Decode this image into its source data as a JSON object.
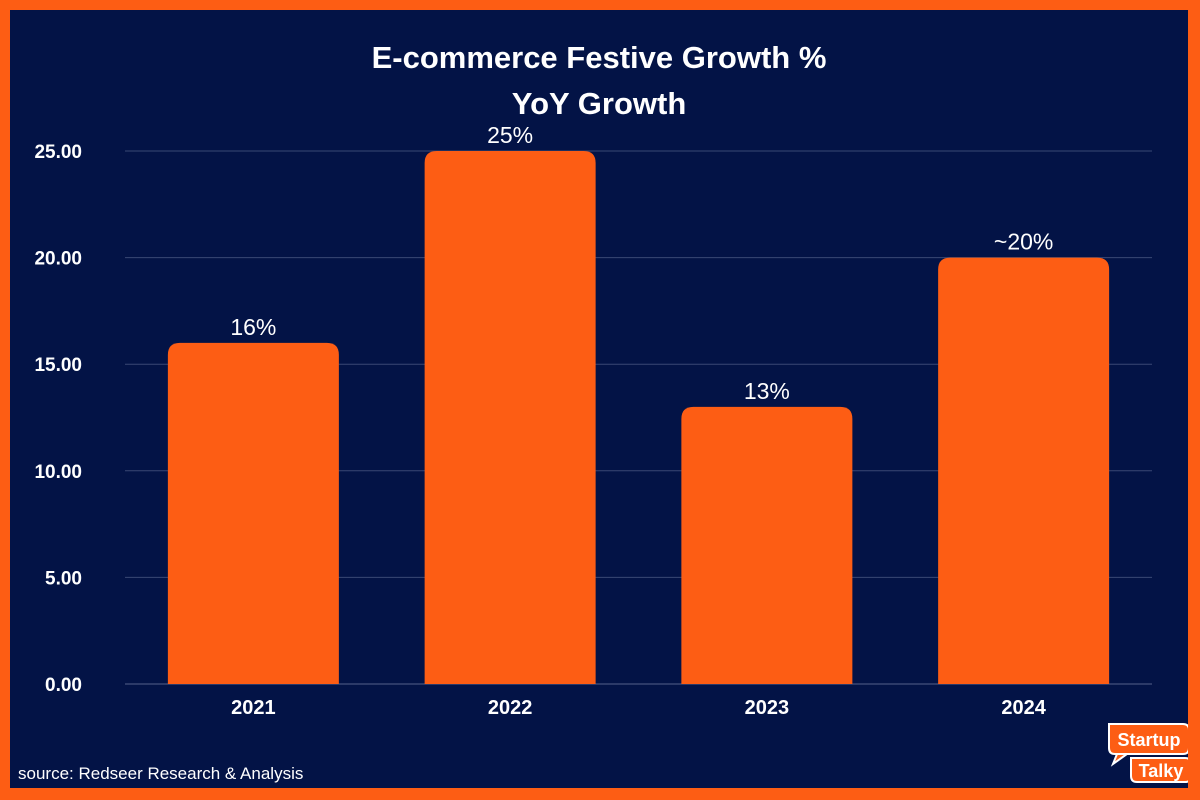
{
  "chart_data": {
    "type": "bar",
    "title": "E-commerce Festive Growth %",
    "subtitle": "YoY  Growth",
    "categories": [
      "2021",
      "2022",
      "2023",
      "2024"
    ],
    "values": [
      16,
      25,
      13,
      20
    ],
    "data_labels": [
      "16%",
      "25%",
      "13%",
      "~20%"
    ],
    "y_ticks": [
      "0.00",
      "5.00",
      "10.00",
      "15.00",
      "20.00",
      "25.00"
    ],
    "ylim": [
      0,
      25
    ],
    "grid": true,
    "legend": "none",
    "xlabel": "",
    "ylabel": ""
  },
  "source": "source: Redseer Research & Analysis",
  "logo": {
    "line1": "Startup",
    "line2": "Talky"
  },
  "colors": {
    "background": "#031346",
    "border": "#fd5d14",
    "bar": "#fd5d14",
    "text": "#ffffff",
    "grid": "#3a4874"
  }
}
